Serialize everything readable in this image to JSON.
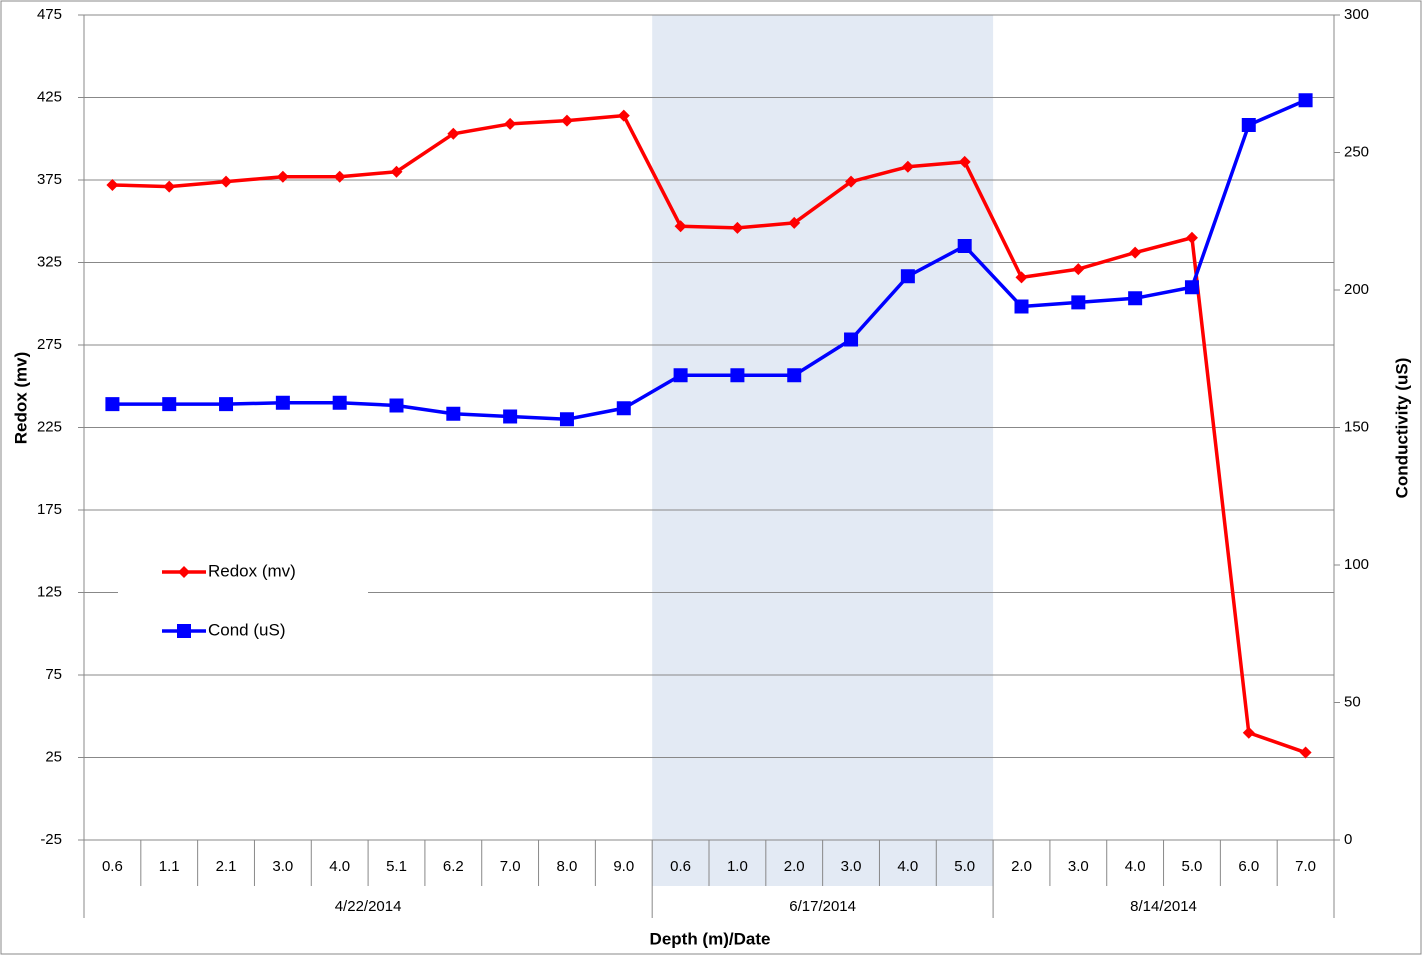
{
  "chart_data": {
    "type": "line",
    "categories": [
      "0.6",
      "1.1",
      "2.1",
      "3.0",
      "4.0",
      "5.1",
      "6.2",
      "7.0",
      "8.0",
      "9.0",
      "0.6",
      "1.0",
      "2.0",
      "3.0",
      "4.0",
      "5.0",
      "2.0",
      "3.0",
      "4.0",
      "5.0",
      "6.0",
      "7.0"
    ],
    "category_dates": [
      "4/22/2014",
      "4/22/2014",
      "4/22/2014",
      "4/22/2014",
      "4/22/2014",
      "4/22/2014",
      "4/22/2014",
      "4/22/2014",
      "4/22/2014",
      "4/22/2014",
      "6/17/2014",
      "6/17/2014",
      "6/17/2014",
      "6/17/2014",
      "6/17/2014",
      "6/17/2014",
      "8/14/2014",
      "8/14/2014",
      "8/14/2014",
      "8/14/2014",
      "8/14/2014",
      "8/14/2014"
    ],
    "highlight_date": "6/17/2014",
    "highlight_color": "#e3eaf4",
    "x_label": "Depth (m)/Date",
    "y_label": "Redox (mv)",
    "y2_label": "Conductivity (uS)",
    "ylim": [
      -25,
      475
    ],
    "yticks": [
      -25,
      25,
      75,
      125,
      175,
      225,
      275,
      325,
      375,
      425,
      475
    ],
    "y2lim": [
      0,
      300
    ],
    "y2ticks": [
      0,
      50,
      100,
      150,
      200,
      250,
      300
    ],
    "grid": true,
    "legend": "left",
    "series": [
      {
        "name": "Redox (mv)",
        "color": "#ff0000",
        "marker": "diamond",
        "values": [
          372,
          371,
          374,
          377,
          377,
          380,
          403,
          409,
          411,
          414,
          347,
          346,
          349,
          374,
          383,
          386,
          316,
          321,
          331,
          340,
          40,
          28
        ]
      },
      {
        "name": "Cond (uS)",
        "color": "#0000ff",
        "marker": "square",
        "axis": "y2",
        "values": [
          158.5,
          158.5,
          158.5,
          159,
          159,
          158,
          155,
          154,
          153,
          157,
          169,
          169,
          169,
          182,
          205,
          216,
          194,
          195.5,
          197,
          201,
          260,
          269
        ]
      }
    ]
  }
}
